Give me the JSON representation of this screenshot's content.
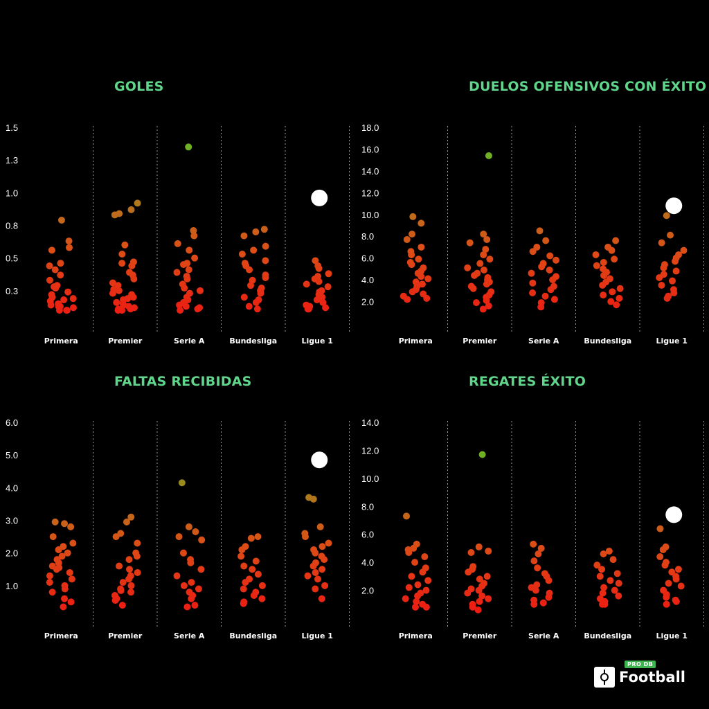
{
  "logo": {
    "text": "Football",
    "badge": "PRO DB"
  },
  "chart_data": [
    {
      "type": "scatter",
      "title": "GOLES",
      "categories": [
        "Primera",
        "Premier",
        "Serie A",
        "Bundesliga",
        "Ligue 1"
      ],
      "yticks": [
        "1.5",
        "1.3",
        "1.0",
        "0.8",
        "0.5",
        "0.3"
      ],
      "ylim": [
        0,
        1.5
      ],
      "grid": "dashed vertical separators",
      "values": [
        [
          0.79,
          0.63,
          0.58,
          0.56,
          0.46,
          0.44,
          0.41,
          0.37,
          0.33,
          0.29,
          0.28,
          0.27,
          0.24,
          0.22,
          0.2,
          0.19,
          0.18,
          0.17,
          0.15,
          0.14,
          0.13,
          0.13,
          0.12,
          0.1,
          0.1,
          0.1
        ],
        [
          0.92,
          0.87,
          0.84,
          0.83,
          0.6,
          0.53,
          0.47,
          0.46,
          0.44,
          0.39,
          0.37,
          0.34,
          0.31,
          0.29,
          0.26,
          0.25,
          0.23,
          0.22,
          0.2,
          0.19,
          0.18,
          0.16,
          0.15,
          0.14,
          0.13,
          0.12,
          0.11,
          0.11,
          0.1,
          0.1
        ],
        [
          1.35,
          0.71,
          0.67,
          0.61,
          0.56,
          0.5,
          0.46,
          0.45,
          0.41,
          0.39,
          0.36,
          0.34,
          0.3,
          0.27,
          0.25,
          0.23,
          0.2,
          0.18,
          0.16,
          0.14,
          0.13,
          0.12,
          0.11,
          0.1
        ],
        [
          0.72,
          0.7,
          0.67,
          0.59,
          0.56,
          0.53,
          0.48,
          0.46,
          0.44,
          0.41,
          0.37,
          0.35,
          0.33,
          0.29,
          0.27,
          0.25,
          0.23,
          0.2,
          0.18,
          0.16,
          0.13,
          0.11
        ],
        [
          0.96,
          0.48,
          0.44,
          0.42,
          0.38,
          0.36,
          0.34,
          0.32,
          0.3,
          0.28,
          0.25,
          0.24,
          0.22,
          0.2,
          0.18,
          0.16,
          0.14,
          0.13,
          0.12,
          0.11,
          0.11
        ]
      ],
      "highlight": {
        "category": "Ligue 1",
        "value": 0.96
      }
    },
    {
      "type": "scatter",
      "title": "DUELOS OFENSIVOS CON ÉXITO",
      "categories": [
        "Primera",
        "Premier",
        "Serie A",
        "Bundesliga",
        "Ligue 1"
      ],
      "yticks": [
        "18.0",
        "16.0",
        "14.0",
        "12.0",
        "10.0",
        "8.0",
        "6.0",
        "4.0",
        "2.0"
      ],
      "ylim": [
        0,
        18
      ],
      "grid": "dashed vertical separators",
      "values": [
        [
          9.8,
          9.2,
          8.2,
          7.7,
          7.0,
          6.6,
          6.3,
          5.9,
          5.6,
          5.4,
          5.1,
          4.8,
          4.6,
          4.3,
          4.1,
          3.8,
          3.6,
          3.4,
          3.1,
          2.9,
          2.7,
          2.5,
          2.3,
          2.2
        ],
        [
          15.4,
          8.2,
          7.7,
          7.4,
          6.8,
          6.3,
          5.9,
          5.5,
          5.1,
          4.9,
          4.6,
          4.4,
          4.2,
          4.0,
          3.8,
          3.6,
          3.4,
          3.2,
          2.9,
          2.6,
          2.4,
          2.1,
          1.9,
          1.6,
          1.3
        ],
        [
          8.5,
          7.6,
          7.0,
          6.6,
          6.2,
          5.8,
          5.5,
          5.2,
          4.9,
          4.6,
          4.3,
          4.0,
          3.7,
          3.4,
          3.1,
          2.8,
          2.5,
          2.2,
          1.9,
          1.5
        ],
        [
          7.6,
          7.0,
          6.7,
          6.3,
          5.9,
          5.6,
          5.3,
          5.0,
          4.7,
          4.4,
          4.1,
          3.8,
          3.5,
          3.2,
          2.9,
          2.6,
          2.3,
          2.0,
          1.7
        ],
        [
          10.8,
          9.9,
          8.1,
          7.4,
          6.7,
          6.3,
          6.0,
          5.7,
          5.4,
          5.1,
          4.8,
          4.5,
          4.2,
          3.9,
          3.5,
          3.1,
          2.8,
          2.5,
          2.3
        ]
      ],
      "highlight": {
        "category": "Ligue 1",
        "value": 10.8
      }
    },
    {
      "type": "scatter",
      "title": "FALTAS RECIBIDAS",
      "categories": [
        "Primera",
        "Premier",
        "Serie A",
        "Bundesliga",
        "Ligue 1"
      ],
      "yticks": [
        "6.0",
        "5.0",
        "4.0",
        "3.0",
        "2.0",
        "1.0"
      ],
      "ylim": [
        0,
        6
      ],
      "grid": "dashed vertical separators",
      "values": [
        [
          2.95,
          2.9,
          2.8,
          2.5,
          2.3,
          2.2,
          2.1,
          2.0,
          1.9,
          1.8,
          1.7,
          1.6,
          1.55,
          1.5,
          1.4,
          1.3,
          1.2,
          1.1,
          1.0,
          0.9,
          0.8,
          0.6,
          0.5,
          0.35
        ],
        [
          3.1,
          2.95,
          2.6,
          2.5,
          2.3,
          2.0,
          1.9,
          1.8,
          1.6,
          1.5,
          1.4,
          1.3,
          1.2,
          1.1,
          1.0,
          0.9,
          0.85,
          0.8,
          0.7,
          0.6,
          0.55,
          0.4
        ],
        [
          4.15,
          2.8,
          2.65,
          2.5,
          2.4,
          2.0,
          1.8,
          1.7,
          1.5,
          1.3,
          1.1,
          1.0,
          0.9,
          0.8,
          0.7,
          0.6,
          0.4,
          0.35
        ],
        [
          2.5,
          2.45,
          2.2,
          2.1,
          1.9,
          1.75,
          1.6,
          1.5,
          1.35,
          1.2,
          1.1,
          1.0,
          0.9,
          0.8,
          0.7,
          0.6,
          0.5,
          0.45
        ],
        [
          4.85,
          3.7,
          3.65,
          2.8,
          2.6,
          2.5,
          2.3,
          2.2,
          2.1,
          2.0,
          1.9,
          1.8,
          1.7,
          1.6,
          1.5,
          1.4,
          1.3,
          1.2,
          1.0,
          0.9,
          0.6
        ]
      ],
      "highlight": {
        "category": "Ligue 1",
        "value": 4.85
      }
    },
    {
      "type": "scatter",
      "title": "REGATES ÉXITO",
      "categories": [
        "Primera",
        "Premier",
        "Serie A",
        "Bundesliga",
        "Ligue 1"
      ],
      "yticks": [
        "14.0",
        "12.0",
        "10.0",
        "8.0",
        "6.0",
        "4.0",
        "2.0"
      ],
      "ylim": [
        0,
        14
      ],
      "grid": "dashed vertical separators",
      "values": [
        [
          7.3,
          5.3,
          5.0,
          4.9,
          4.7,
          4.4,
          4.0,
          3.6,
          3.3,
          3.0,
          2.7,
          2.4,
          2.2,
          2.0,
          1.8,
          1.6,
          1.4,
          1.2,
          1.0,
          0.8,
          0.8
        ],
        [
          11.7,
          5.1,
          4.8,
          4.7,
          3.7,
          3.5,
          3.3,
          3.0,
          2.8,
          2.5,
          2.3,
          2.1,
          2.0,
          1.8,
          1.6,
          1.4,
          1.2,
          1.0,
          0.8,
          0.6
        ],
        [
          5.3,
          5.0,
          4.6,
          4.1,
          3.6,
          3.2,
          3.0,
          2.7,
          2.4,
          2.2,
          2.0,
          1.8,
          1.5,
          1.3,
          1.1,
          1.0
        ],
        [
          4.8,
          4.6,
          4.2,
          3.8,
          3.5,
          3.2,
          3.0,
          2.7,
          2.5,
          2.2,
          2.0,
          1.8,
          1.6,
          1.4,
          1.2,
          1.0,
          1.0
        ],
        [
          7.4,
          6.4,
          5.1,
          4.9,
          4.4,
          4.0,
          3.8,
          3.5,
          3.3,
          3.0,
          2.8,
          2.5,
          2.3,
          2.0,
          1.7,
          1.5,
          1.3,
          1.2,
          1.0
        ]
      ],
      "highlight": {
        "category": "Ligue 1",
        "value": 7.4
      }
    }
  ]
}
